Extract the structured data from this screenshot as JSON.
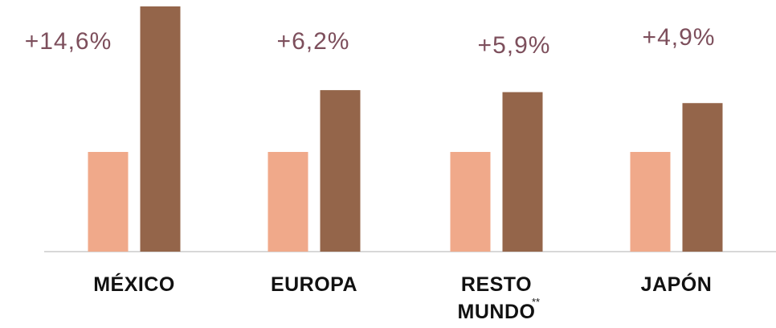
{
  "chart_data": {
    "type": "bar",
    "categories": [
      "MÉXICO",
      "EUROPA",
      "RESTO MUNDO",
      "JAPÓN"
    ],
    "category_marks": [
      null,
      null,
      "**",
      null
    ],
    "series": [
      {
        "color": "#f0a98a",
        "values": [
          100,
          100,
          100,
          100
        ]
      },
      {
        "color": "#94654a",
        "values": [
          246,
          162,
          160,
          149
        ]
      }
    ],
    "annotations": [
      "+14,6%",
      "+6,2%",
      "+5,9%",
      "+4,9%"
    ],
    "annotation_color": "#7d4f5c"
  }
}
